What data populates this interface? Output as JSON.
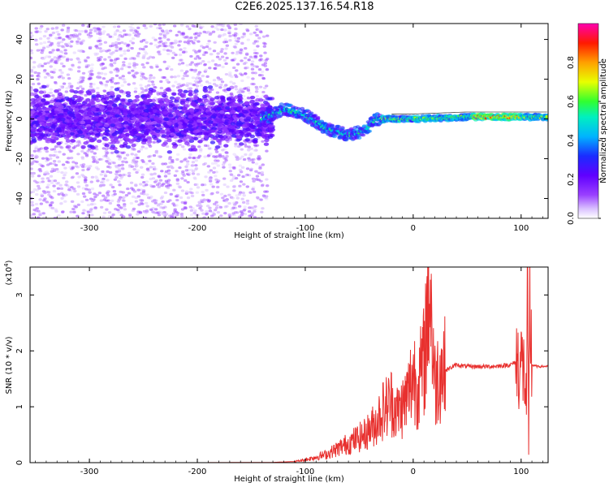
{
  "title": "C2E6.2025.137.16.54.R18",
  "chart_data": [
    {
      "type": "heatmap",
      "xlabel": "Height of straight line (km)",
      "ylabel": "Frequency (Hz)",
      "xlim": [
        -355,
        125
      ],
      "ylim": [
        -50,
        48
      ],
      "xticks": [
        -300,
        -200,
        -100,
        0,
        100
      ],
      "yticks": [
        -40,
        -20,
        0,
        20,
        40
      ],
      "colorbar": {
        "label": "Normalized spectral amplitude",
        "range": [
          0,
          1
        ],
        "ticks": [
          "0.0",
          "0.2",
          "0.4",
          "0.6",
          "0.8"
        ],
        "colors": [
          "#ffffff",
          "#c8a0ff",
          "#8a00ff",
          "#2030ff",
          "#00c8ff",
          "#00ff60",
          "#ffff00",
          "#ff9000",
          "#ff0000",
          "#ff00c0"
        ]
      },
      "ridge": {
        "description_points_x": [
          -355,
          -140,
          -120,
          -100,
          -80,
          -60,
          -45,
          -35,
          -20,
          0,
          50,
          100,
          125
        ],
        "description_points_y": [
          0,
          0,
          5,
          2,
          -5,
          -8,
          -6,
          0,
          0,
          0,
          1,
          1,
          1
        ]
      },
      "grid": false
    },
    {
      "type": "line",
      "xlabel": "Height of straight line (km)",
      "ylabel": "SNR (10 * v/v)",
      "yscale_label": "(x10",
      "yscale_exp": "4",
      "yscale_close": ")",
      "xlim": [
        -355,
        125
      ],
      "ylim": [
        0,
        3.5
      ],
      "xticks": [
        -300,
        -200,
        -100,
        0,
        100
      ],
      "yticks": [
        0,
        1,
        2,
        3
      ],
      "series": [
        {
          "color": "#e8302e",
          "x": [
            -355,
            -200,
            -130,
            -110,
            -100,
            -90,
            -80,
            -70,
            -60,
            -50,
            -45,
            -40,
            -35,
            -30,
            -25,
            -20,
            -15,
            -10,
            -5,
            0,
            5,
            10,
            15,
            20,
            25,
            30,
            35,
            40,
            50,
            60,
            70,
            80,
            90,
            95,
            100,
            103,
            105,
            106,
            107,
            108,
            110,
            115,
            120,
            125
          ],
          "y": [
            0.0,
            0.0,
            0.005,
            0.02,
            0.05,
            0.1,
            0.15,
            0.25,
            0.35,
            0.45,
            0.5,
            0.6,
            0.7,
            0.9,
            1.0,
            1.1,
            0.9,
            1.0,
            1.2,
            1.6,
            1.4,
            1.8,
            3.4,
            1.4,
            1.7,
            1.65,
            1.7,
            1.75,
            1.72,
            1.72,
            1.72,
            1.73,
            1.75,
            1.8,
            1.8,
            1.6,
            1.0,
            3.2,
            0.1,
            2.8,
            1.75,
            1.72,
            1.72,
            1.73
          ]
        }
      ],
      "grid": false
    }
  ]
}
